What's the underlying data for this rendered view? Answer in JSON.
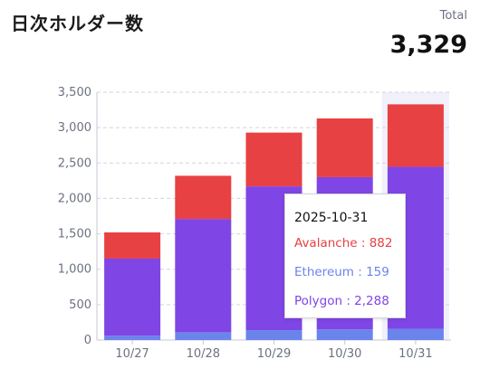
{
  "header": {
    "title": "日次ホルダー数",
    "total_label": "Total",
    "total_value": "3,329"
  },
  "chart_data": {
    "type": "bar",
    "stacked": true,
    "categories": [
      "10/27",
      "10/28",
      "10/29",
      "10/30",
      "10/31"
    ],
    "series": [
      {
        "name": "Ethereum",
        "color": "#6b84ec",
        "values": [
          60,
          110,
          140,
          150,
          159
        ]
      },
      {
        "name": "Polygon",
        "color": "#8045e5",
        "values": [
          1090,
          1600,
          2030,
          2150,
          2288
        ]
      },
      {
        "name": "Avalanche",
        "color": "#e74143",
        "values": [
          370,
          610,
          760,
          830,
          882
        ]
      }
    ],
    "ylim": [
      0,
      3500
    ],
    "yticks": [
      "0",
      "500",
      "1,000",
      "1,500",
      "2,000",
      "2,500",
      "3,000",
      "3,500"
    ],
    "grid": true,
    "highlight_category": "10/31",
    "tooltip": {
      "date": "2025-10-31",
      "rows": [
        {
          "label": "Avalanche : 882",
          "color": "#e74143"
        },
        {
          "label": "Ethereum : 159",
          "color": "#6b84ec"
        },
        {
          "label": "Polygon : 2,288",
          "color": "#8045e5"
        }
      ]
    }
  }
}
